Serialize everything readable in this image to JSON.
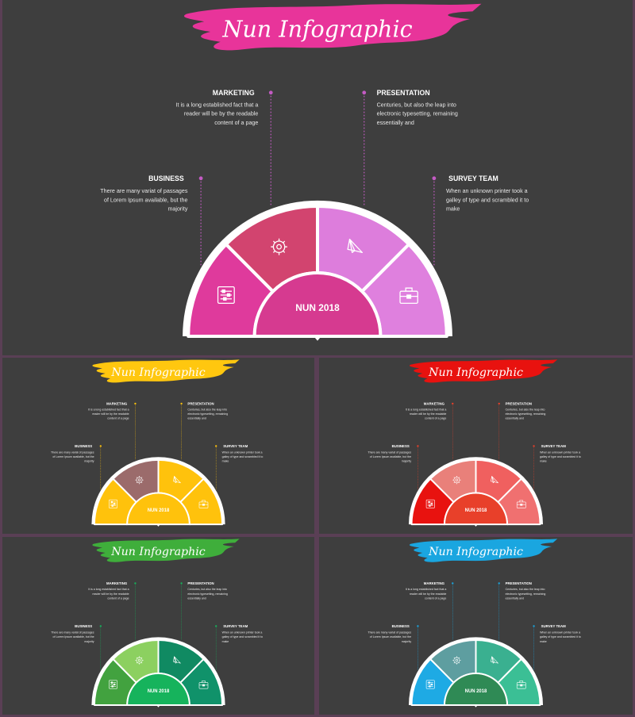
{
  "slides": [
    {
      "title": "Nun Infographic",
      "center": "NUN 2018",
      "theme": {
        "brush": "#e8349a",
        "seg": [
          "#df3a9c",
          "#d2446f",
          "#dd7ddc",
          "#df80de"
        ],
        "inner": "#d63a90",
        "dot": "#c45bc4"
      },
      "items": [
        {
          "heading": "BUSINESS",
          "body": [
            "There are many variat of passages",
            "of Lorem Ipsum available, but the",
            "majority"
          ]
        },
        {
          "heading": "MARKETING",
          "body": [
            "It is a long established fact that a",
            "reader will be by the readable",
            "content of a page"
          ]
        },
        {
          "heading": "PRESENTATION",
          "body": [
            "Centuries, but also the leap into",
            "electronic typesetting, remaining",
            "essentially and"
          ]
        },
        {
          "heading": "SURVEY TEAM",
          "body": [
            "When an unknown printer took a",
            "galley of type and scrambled it to",
            "make"
          ]
        }
      ]
    },
    {
      "title": "Nun Infographic",
      "center": "NUN 2018",
      "theme": {
        "brush": "#ffc70f",
        "seg": [
          "#ffc20c",
          "#9b6b6b",
          "#ffc20c",
          "#ffc20c"
        ],
        "inner": "#ffc20c",
        "dot": "#ffc20c"
      },
      "items": [
        {
          "heading": "BUSINESS",
          "body": [
            "There are many variat of passages",
            "of Lorem Ipsum available, but the",
            "majority"
          ]
        },
        {
          "heading": "MARKETING",
          "body": [
            "It is a long established fact that a",
            "reader will be by the readable",
            "content of a page"
          ]
        },
        {
          "heading": "PRESENTATION",
          "body": [
            "Centuries, but also the leap into",
            "electronic typesetting, remaining",
            "essentially and"
          ]
        },
        {
          "heading": "SURVEY TEAM",
          "body": [
            "When an unknown printer took a",
            "galley of type and scrambled it to",
            "make"
          ]
        }
      ]
    },
    {
      "title": "Nun Infographic",
      "center": "NUN 2018",
      "theme": {
        "brush": "#e8120f",
        "seg": [
          "#e8120f",
          "#e9807a",
          "#f0605f",
          "#f07070"
        ],
        "inner": "#e8402a",
        "dot": "#e8402a"
      },
      "items": [
        {
          "heading": "BUSINESS",
          "body": [
            "There are many variat of passages",
            "of Lorem Ipsum available, but the",
            "majority"
          ]
        },
        {
          "heading": "MARKETING",
          "body": [
            "It is a long established fact that a",
            "reader will be by the readable",
            "content of a page"
          ]
        },
        {
          "heading": "PRESENTATION",
          "body": [
            "Centuries, but also the leap into",
            "electronic typesetting, remaining",
            "essentially and"
          ]
        },
        {
          "heading": "SURVEY TEAM",
          "body": [
            "When an unknown printer took a",
            "galley of type and scrambled it to",
            "make"
          ]
        }
      ]
    },
    {
      "title": "Nun Infographic",
      "center": "NUN 2018",
      "theme": {
        "brush": "#3fae3b",
        "seg": [
          "#42a23f",
          "#8cd060",
          "#108a62",
          "#10926a"
        ],
        "inner": "#16b35c",
        "dot": "#16b35c"
      },
      "items": [
        {
          "heading": "BUSINESS",
          "body": [
            "There are many variat of passages",
            "of Lorem Ipsum available, but the",
            "majority"
          ]
        },
        {
          "heading": "MARKETING",
          "body": [
            "It is a long established fact that a",
            "reader will be by the readable",
            "content of a page"
          ]
        },
        {
          "heading": "PRESENTATION",
          "body": [
            "Centuries, but also the leap into",
            "electronic typesetting, remaining",
            "essentially and"
          ]
        },
        {
          "heading": "SURVEY TEAM",
          "body": [
            "When an unknown printer took a",
            "galley of type and scrambled it to",
            "make"
          ]
        }
      ]
    },
    {
      "title": "Nun Infographic",
      "center": "NUN 2018",
      "theme": {
        "brush": "#1aa6e0",
        "seg": [
          "#1eaae4",
          "#5e9ea0",
          "#3ab090",
          "#3bbf95"
        ],
        "inner": "#2f8a55",
        "dot": "#1aa6e0"
      },
      "items": [
        {
          "heading": "BUSINESS",
          "body": [
            "There are many variat of passages",
            "of Lorem Ipsum available, but the",
            "majority"
          ]
        },
        {
          "heading": "MARKETING",
          "body": [
            "It is a long established fact that a",
            "reader will be by the readable",
            "content of a page"
          ]
        },
        {
          "heading": "PRESENTATION",
          "body": [
            "Centuries, but also the leap into",
            "electronic typesetting, remaining",
            "essentially and"
          ]
        },
        {
          "heading": "SURVEY TEAM",
          "body": [
            "When an unknown printer took a",
            "galley of type and scrambled it to",
            "make"
          ]
        }
      ]
    }
  ]
}
